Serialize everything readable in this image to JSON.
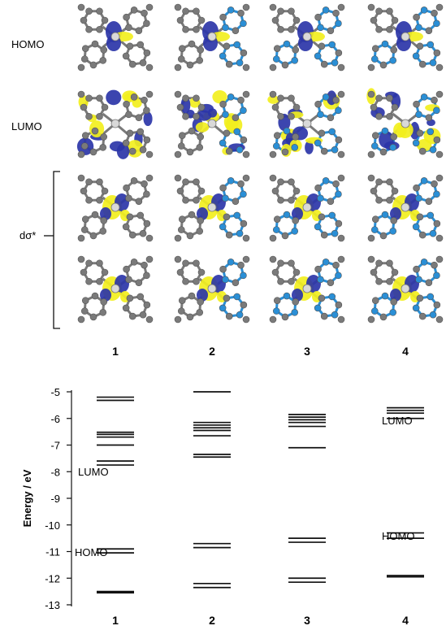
{
  "orbital_panel": {
    "row_labels": [
      "HOMO",
      "LUMO"
    ],
    "bracket_label": "dσ*",
    "column_labels": [
      "1",
      "2",
      "3",
      "4"
    ],
    "colors": {
      "carbon": "#7a7a7a",
      "nitrogen": "#2a8fd6",
      "lobe_yellow": "#f2ef1e",
      "lobe_blue": "#2b35a8"
    }
  },
  "chart_data": {
    "type": "energy-level diagram",
    "ylabel": "Energy / eV",
    "ylim": [
      -13,
      -5
    ],
    "yticks": [
      "-5",
      "-6",
      "-7",
      "-8",
      "-9",
      "-10",
      "-11",
      "-12",
      "-13"
    ],
    "categories": [
      "1",
      "2",
      "3",
      "4"
    ],
    "level_labels": {
      "left": {
        "LUMO": "LUMO",
        "HOMO": "HOMO"
      },
      "right": {
        "LUMO": "LUMO",
        "HOMO": "HOMO"
      }
    },
    "columns": [
      {
        "name": "1",
        "levels": [
          -5.2,
          -5.32,
          -6.52,
          -6.6,
          -6.7,
          -7.0,
          -7.6,
          -7.75,
          -10.9,
          -11.05,
          -12.5,
          -12.55
        ]
      },
      {
        "name": "2",
        "levels": [
          -5.0,
          -6.15,
          -6.25,
          -6.35,
          -6.45,
          -6.65,
          -7.35,
          -7.45,
          -10.7,
          -10.85,
          -12.2,
          -12.35
        ]
      },
      {
        "name": "3",
        "levels": [
          -5.85,
          -5.95,
          -6.05,
          -6.15,
          -6.3,
          -7.1,
          -10.5,
          -10.65,
          -12.0,
          -12.15
        ]
      },
      {
        "name": "4",
        "levels": [
          -5.6,
          -5.7,
          -5.8,
          -6.0,
          -10.3,
          -10.5,
          -11.9,
          -11.95
        ]
      }
    ]
  }
}
